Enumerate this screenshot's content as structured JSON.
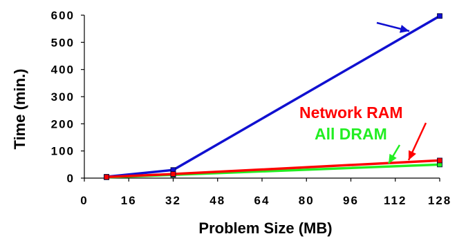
{
  "chart_data": {
    "type": "line",
    "title": "",
    "xlabel": "Problem Size (MB)",
    "ylabel": "Time (min.)",
    "xlim": [
      0,
      128
    ],
    "ylim": [
      0,
      600
    ],
    "x_ticks": [
      "0",
      "16",
      "32",
      "48",
      "64",
      "80",
      "96",
      "112",
      "128"
    ],
    "y_ticks": [
      "0",
      "100",
      "200",
      "300",
      "400",
      "500",
      "600"
    ],
    "grid": false,
    "legend": "none",
    "series": [
      {
        "name": "",
        "color": "#1010d0",
        "marker": "square",
        "x": [
          8,
          32,
          128
        ],
        "y": [
          5,
          30,
          597
        ]
      },
      {
        "name": "Network RAM",
        "color": "#ff0000",
        "marker": "square",
        "x": [
          8,
          32,
          128
        ],
        "y": [
          4,
          15,
          65
        ]
      },
      {
        "name": "All DRAM",
        "color": "#22ee22",
        "marker": "square",
        "x": [
          8,
          32,
          128
        ],
        "y": [
          3,
          12,
          50
        ]
      }
    ]
  }
}
